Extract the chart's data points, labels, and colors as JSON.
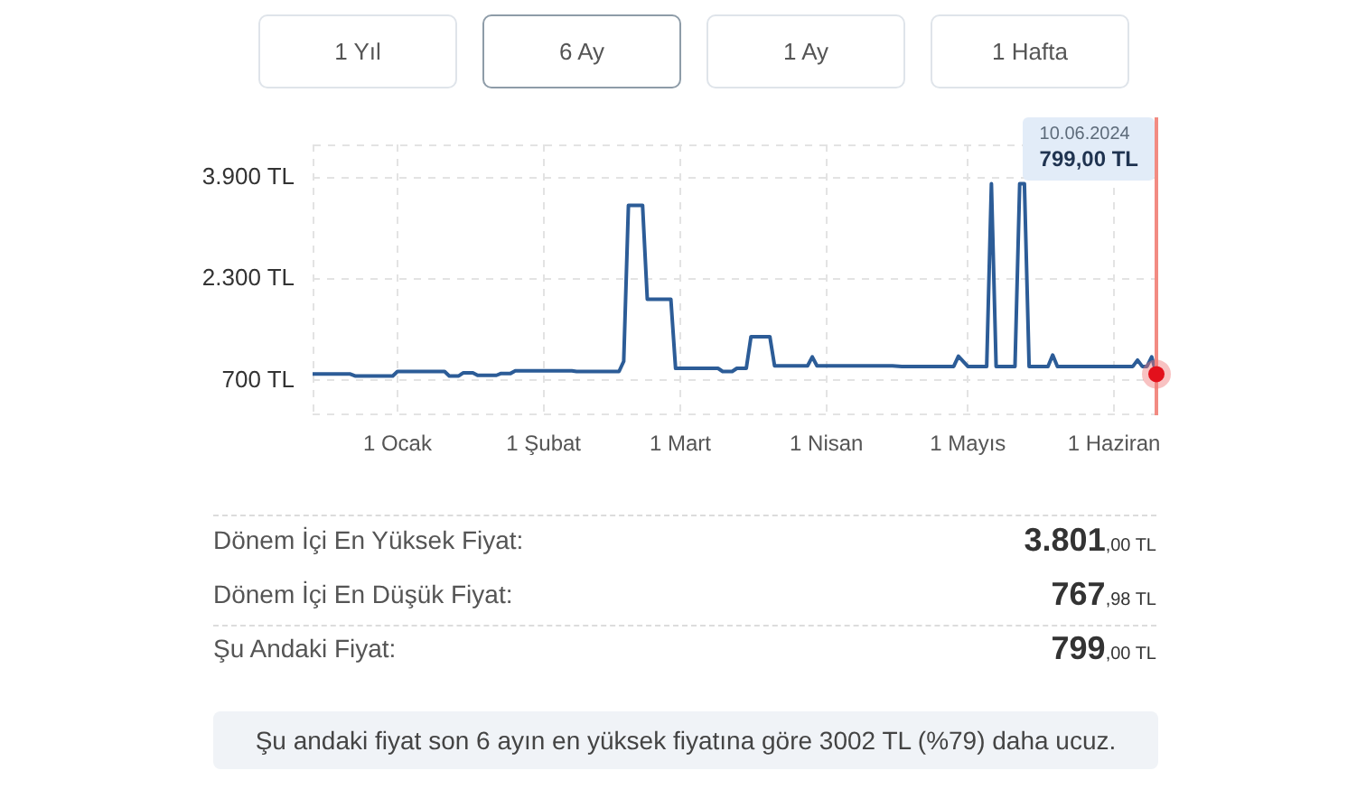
{
  "chart_data": {
    "type": "line",
    "x": [
      "2023-12-14",
      "2023-12-22",
      "2023-12-23",
      "2023-12-31",
      "2024-01-01",
      "2024-01-11",
      "2024-01-12",
      "2024-01-14",
      "2024-01-15",
      "2024-01-17",
      "2024-01-18",
      "2024-01-22",
      "2024-01-23",
      "2024-01-25",
      "2024-01-26",
      "2024-02-07",
      "2024-02-08",
      "2024-02-17",
      "2024-02-18",
      "2024-02-19",
      "2024-02-22",
      "2024-02-23",
      "2024-02-28",
      "2024-02-29",
      "2024-03-09",
      "2024-03-10",
      "2024-03-12",
      "2024-03-13",
      "2024-03-15",
      "2024-03-16",
      "2024-03-20",
      "2024-03-21",
      "2024-03-28",
      "2024-03-29",
      "2024-03-30",
      "2024-04-15",
      "2024-04-17",
      "2024-04-28",
      "2024-04-29",
      "2024-05-01",
      "2024-05-05",
      "2024-05-06",
      "2024-05-07",
      "2024-05-11",
      "2024-05-12",
      "2024-05-13",
      "2024-05-14",
      "2024-05-18",
      "2024-05-19",
      "2024-05-20",
      "2024-06-05",
      "2024-06-06",
      "2024-06-07",
      "2024-06-08",
      "2024-06-09",
      "2024-06-10"
    ],
    "values": [
      800,
      800,
      770,
      770,
      840,
      840,
      770,
      770,
      820,
      820,
      780,
      780,
      810,
      810,
      850,
      850,
      840,
      840,
      1000,
      3460,
      3460,
      1980,
      1980,
      890,
      890,
      840,
      840,
      890,
      890,
      1390,
      1390,
      930,
      930,
      1070,
      930,
      930,
      920,
      920,
      1080,
      920,
      920,
      3801,
      920,
      920,
      3801,
      3801,
      920,
      920,
      1100,
      920,
      920,
      1020,
      920,
      920,
      1070,
      799
    ],
    "color": "#2c5c97",
    "xlim": [
      "2023-12-14",
      "2024-06-10"
    ],
    "xticks": [
      {
        "value": "2024-01-01",
        "label": "1 Ocak"
      },
      {
        "value": "2024-02-01",
        "label": "1 Şubat"
      },
      {
        "value": "2024-03-01",
        "label": "1 Mart"
      },
      {
        "value": "2024-04-01",
        "label": "1 Nisan"
      },
      {
        "value": "2024-05-01",
        "label": "1 Mayıs"
      },
      {
        "value": "2024-06-01",
        "label": "1 Haziran"
      }
    ],
    "ylim": [
      150,
      4420
    ],
    "yticks": [
      {
        "value": 700,
        "label": "700 TL"
      },
      {
        "value": 2300,
        "label": "2.300 TL"
      },
      {
        "value": 3900,
        "label": "3.900 TL"
      }
    ],
    "grid": true,
    "ref_lines": [
      {
        "axis": "x",
        "value": "2024-06-10",
        "color": "#f28b82"
      }
    ],
    "annotations": [
      "1 Yıl",
      "6 Ay",
      "1 Ay",
      "1 Hafta",
      "10.06.2024",
      "799,00 TL",
      "Dönem İçi En Yüksek Fiyat:",
      "3.801,00 TL",
      "Dönem İçi En Düşük Fiyat:",
      "767,98 TL",
      "Şu Andaki Fiyat:",
      "799,00 TL",
      "Şu andaki fiyat son 6 ayın en yüksek fiyatına göre 3002 TL (%79) daha ucuz."
    ]
  }
}
